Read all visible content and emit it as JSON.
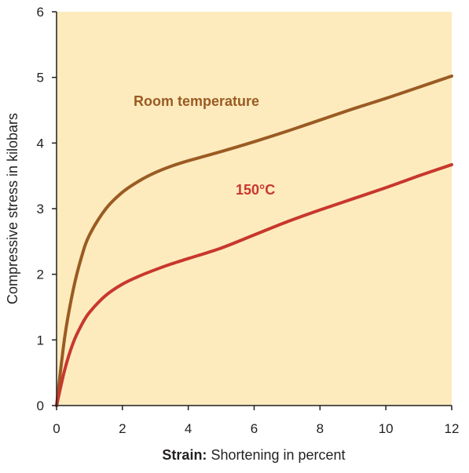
{
  "chart_data": {
    "type": "line",
    "title": "",
    "xlabel_bold": "Strain:",
    "xlabel_rest": " Shortening in percent",
    "ylabel": "Compressive stress in kilobars",
    "xlim": [
      0,
      12
    ],
    "ylim": [
      0,
      6
    ],
    "x_ticks": [
      "0",
      "2",
      "4",
      "6",
      "8",
      "10",
      "12"
    ],
    "y_ticks": [
      "0",
      "1",
      "2",
      "3",
      "4",
      "5",
      "6"
    ],
    "grid": false,
    "background_color": "#fdebbe",
    "series": [
      {
        "name": "Room temperature",
        "color": "#9a5b22",
        "x": [
          0,
          0.25,
          0.5,
          0.75,
          1,
          1.5,
          2,
          2.5,
          3,
          3.5,
          4,
          5,
          6,
          7,
          8,
          9,
          10,
          11,
          12
        ],
        "y": [
          0,
          1.05,
          1.75,
          2.25,
          2.6,
          3.0,
          3.25,
          3.42,
          3.55,
          3.65,
          3.73,
          3.87,
          4.02,
          4.18,
          4.35,
          4.52,
          4.68,
          4.85,
          5.02
        ]
      },
      {
        "name": "150°C",
        "color": "#c8372d",
        "x": [
          0,
          0.25,
          0.5,
          0.75,
          1,
          1.5,
          2,
          2.5,
          3,
          3.5,
          4,
          5,
          6,
          7,
          8,
          9,
          10,
          11,
          12
        ],
        "y": [
          0,
          0.55,
          0.95,
          1.22,
          1.42,
          1.68,
          1.85,
          1.97,
          2.07,
          2.16,
          2.24,
          2.4,
          2.6,
          2.8,
          2.98,
          3.15,
          3.32,
          3.5,
          3.67
        ]
      }
    ]
  }
}
